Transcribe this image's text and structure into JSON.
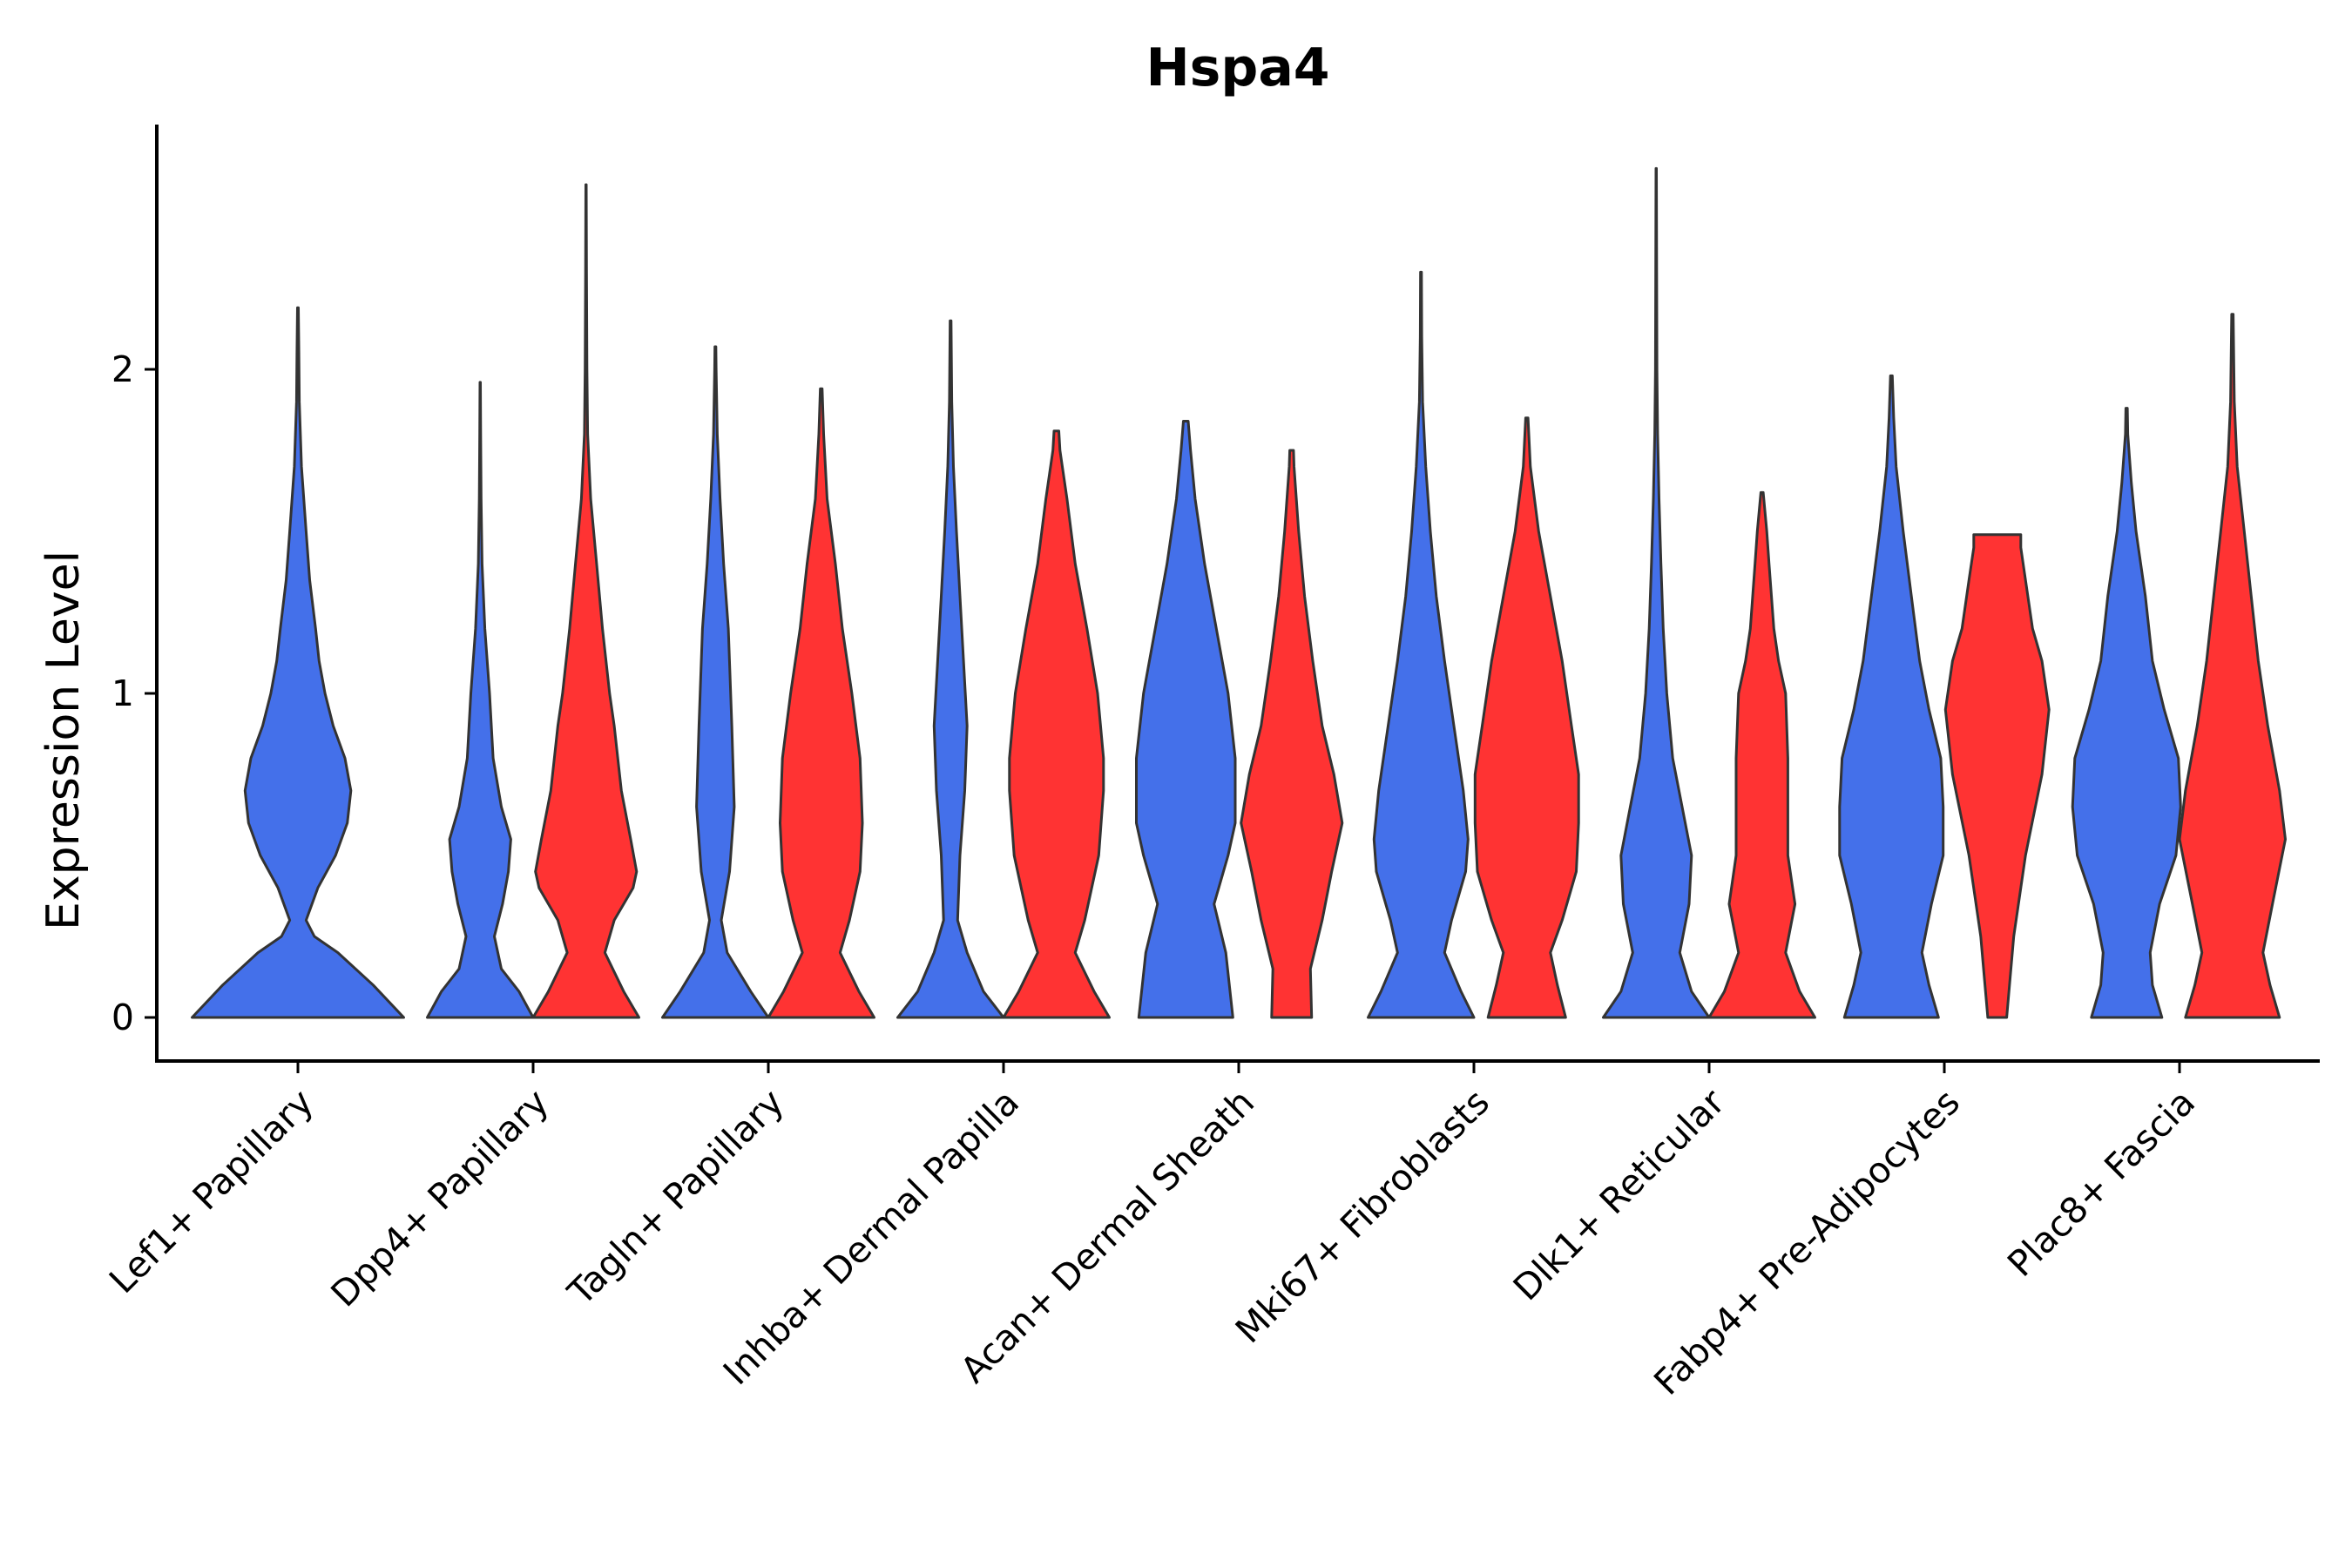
{
  "chart_data": {
    "type": "violin",
    "title": "Hspa4",
    "xlabel": "",
    "ylabel": "Expression Level",
    "ylim": [
      -0.13,
      2.78
    ],
    "yticks": [
      0,
      1,
      2
    ],
    "grid": false,
    "legend": "none",
    "categories": [
      "Lef1+ Papillary",
      "Dpp4+ Papillary",
      "Tagln+ Papillary",
      "Inhba+ Dermal Papilla",
      "Acan+ Dermal Sheath",
      "Mki67+ Fibroblasts",
      "Dlk1+ Reticular",
      "Fabp4+ Pre-Adipocytes",
      "Plac8+ Fascia"
    ],
    "colors": {
      "group1": "#4470EA",
      "group2": "#FF3333",
      "outline": "#333333"
    },
    "violins": [
      {
        "category_index": 0,
        "group": "group1",
        "offset": 0,
        "profile": [
          [
            0.0,
            0.45
          ],
          [
            0.1,
            0.32
          ],
          [
            0.2,
            0.17
          ],
          [
            0.25,
            0.07
          ],
          [
            0.3,
            0.035
          ],
          [
            0.4,
            0.085
          ],
          [
            0.5,
            0.16
          ],
          [
            0.6,
            0.21
          ],
          [
            0.7,
            0.225
          ],
          [
            0.8,
            0.2
          ],
          [
            0.9,
            0.15
          ],
          [
            1.0,
            0.115
          ],
          [
            1.1,
            0.09
          ],
          [
            1.2,
            0.075
          ],
          [
            1.35,
            0.05
          ],
          [
            1.5,
            0.035
          ],
          [
            1.7,
            0.015
          ],
          [
            1.9,
            0.006
          ],
          [
            2.05,
            0.004
          ],
          [
            2.19,
            0.002
          ]
        ]
      },
      {
        "category_index": 1,
        "group": "group1",
        "offset": -0.225,
        "profile": [
          [
            0.0,
            0.225
          ],
          [
            0.08,
            0.165
          ],
          [
            0.15,
            0.09
          ],
          [
            0.25,
            0.06
          ],
          [
            0.35,
            0.095
          ],
          [
            0.45,
            0.12
          ],
          [
            0.55,
            0.13
          ],
          [
            0.65,
            0.09
          ],
          [
            0.8,
            0.055
          ],
          [
            1.0,
            0.04
          ],
          [
            1.2,
            0.02
          ],
          [
            1.4,
            0.008
          ],
          [
            1.6,
            0.004
          ],
          [
            1.8,
            0.002
          ],
          [
            1.96,
            0.0008
          ]
        ]
      },
      {
        "category_index": 1,
        "group": "group2",
        "offset": 0.225,
        "profile": [
          [
            0.0,
            0.225
          ],
          [
            0.08,
            0.16
          ],
          [
            0.2,
            0.08
          ],
          [
            0.3,
            0.12
          ],
          [
            0.4,
            0.2
          ],
          [
            0.45,
            0.215
          ],
          [
            0.55,
            0.19
          ],
          [
            0.7,
            0.15
          ],
          [
            0.9,
            0.12
          ],
          [
            1.0,
            0.1
          ],
          [
            1.2,
            0.07
          ],
          [
            1.4,
            0.045
          ],
          [
            1.6,
            0.02
          ],
          [
            1.8,
            0.007
          ],
          [
            2.0,
            0.004
          ],
          [
            2.3,
            0.002
          ],
          [
            2.57,
            0.001
          ]
        ]
      },
      {
        "category_index": 2,
        "group": "group1",
        "offset": -0.225,
        "profile": [
          [
            0.0,
            0.225
          ],
          [
            0.08,
            0.15
          ],
          [
            0.2,
            0.05
          ],
          [
            0.3,
            0.025
          ],
          [
            0.45,
            0.06
          ],
          [
            0.65,
            0.08
          ],
          [
            0.9,
            0.07
          ],
          [
            1.2,
            0.055
          ],
          [
            1.4,
            0.035
          ],
          [
            1.6,
            0.02
          ],
          [
            1.8,
            0.008
          ],
          [
            2.0,
            0.003
          ],
          [
            2.07,
            0.002
          ]
        ]
      },
      {
        "category_index": 2,
        "group": "group2",
        "offset": 0.225,
        "profile": [
          [
            0.0,
            0.225
          ],
          [
            0.08,
            0.16
          ],
          [
            0.2,
            0.08
          ],
          [
            0.3,
            0.12
          ],
          [
            0.45,
            0.165
          ],
          [
            0.6,
            0.175
          ],
          [
            0.8,
            0.165
          ],
          [
            1.0,
            0.13
          ],
          [
            1.2,
            0.09
          ],
          [
            1.4,
            0.06
          ],
          [
            1.6,
            0.025
          ],
          [
            1.8,
            0.01
          ],
          [
            1.94,
            0.004
          ]
        ]
      },
      {
        "category_index": 3,
        "group": "group1",
        "offset": -0.225,
        "profile": [
          [
            0.0,
            0.225
          ],
          [
            0.08,
            0.14
          ],
          [
            0.2,
            0.07
          ],
          [
            0.3,
            0.03
          ],
          [
            0.5,
            0.04
          ],
          [
            0.7,
            0.06
          ],
          [
            0.9,
            0.07
          ],
          [
            1.1,
            0.055
          ],
          [
            1.3,
            0.04
          ],
          [
            1.5,
            0.025
          ],
          [
            1.7,
            0.012
          ],
          [
            1.9,
            0.005
          ],
          [
            2.15,
            0.002
          ]
        ]
      },
      {
        "category_index": 3,
        "group": "group2",
        "offset": 0.225,
        "profile": [
          [
            0.0,
            0.225
          ],
          [
            0.08,
            0.16
          ],
          [
            0.2,
            0.08
          ],
          [
            0.3,
            0.12
          ],
          [
            0.5,
            0.18
          ],
          [
            0.7,
            0.2
          ],
          [
            0.8,
            0.2
          ],
          [
            1.0,
            0.175
          ],
          [
            1.2,
            0.13
          ],
          [
            1.4,
            0.08
          ],
          [
            1.6,
            0.045
          ],
          [
            1.75,
            0.015
          ],
          [
            1.81,
            0.01
          ]
        ]
      },
      {
        "category_index": 4,
        "group": "group1",
        "offset": -0.225,
        "profile": [
          [
            0.0,
            0.2
          ],
          [
            0.2,
            0.17
          ],
          [
            0.35,
            0.12
          ],
          [
            0.5,
            0.18
          ],
          [
            0.6,
            0.21
          ],
          [
            0.8,
            0.21
          ],
          [
            1.0,
            0.18
          ],
          [
            1.2,
            0.13
          ],
          [
            1.4,
            0.08
          ],
          [
            1.6,
            0.04
          ],
          [
            1.75,
            0.02
          ],
          [
            1.84,
            0.01
          ]
        ]
      },
      {
        "category_index": 4,
        "group": "group2",
        "offset": 0.225,
        "profile": [
          [
            0.0,
            0.085
          ],
          [
            0.15,
            0.08
          ],
          [
            0.3,
            0.13
          ],
          [
            0.45,
            0.17
          ],
          [
            0.6,
            0.215
          ],
          [
            0.75,
            0.18
          ],
          [
            0.9,
            0.13
          ],
          [
            1.1,
            0.09
          ],
          [
            1.3,
            0.055
          ],
          [
            1.5,
            0.03
          ],
          [
            1.7,
            0.01
          ],
          [
            1.75,
            0.008
          ]
        ]
      },
      {
        "category_index": 5,
        "group": "group1",
        "offset": -0.225,
        "profile": [
          [
            0.0,
            0.225
          ],
          [
            0.08,
            0.17
          ],
          [
            0.2,
            0.1
          ],
          [
            0.3,
            0.13
          ],
          [
            0.45,
            0.19
          ],
          [
            0.55,
            0.2
          ],
          [
            0.7,
            0.18
          ],
          [
            0.9,
            0.14
          ],
          [
            1.1,
            0.1
          ],
          [
            1.3,
            0.065
          ],
          [
            1.5,
            0.04
          ],
          [
            1.7,
            0.02
          ],
          [
            1.9,
            0.007
          ],
          [
            2.1,
            0.003
          ],
          [
            2.3,
            0.002
          ]
        ]
      },
      {
        "category_index": 5,
        "group": "group2",
        "offset": 0.225,
        "profile": [
          [
            0.0,
            0.165
          ],
          [
            0.1,
            0.13
          ],
          [
            0.2,
            0.1
          ],
          [
            0.3,
            0.15
          ],
          [
            0.45,
            0.21
          ],
          [
            0.6,
            0.22
          ],
          [
            0.75,
            0.22
          ],
          [
            0.9,
            0.19
          ],
          [
            1.1,
            0.15
          ],
          [
            1.3,
            0.1
          ],
          [
            1.5,
            0.05
          ],
          [
            1.7,
            0.015
          ],
          [
            1.85,
            0.005
          ]
        ]
      },
      {
        "category_index": 6,
        "group": "group1",
        "offset": -0.225,
        "profile": [
          [
            0.0,
            0.225
          ],
          [
            0.08,
            0.15
          ],
          [
            0.2,
            0.1
          ],
          [
            0.35,
            0.14
          ],
          [
            0.5,
            0.15
          ],
          [
            0.65,
            0.11
          ],
          [
            0.8,
            0.07
          ],
          [
            1.0,
            0.045
          ],
          [
            1.2,
            0.03
          ],
          [
            1.4,
            0.02
          ],
          [
            1.6,
            0.012
          ],
          [
            1.8,
            0.006
          ],
          [
            2.0,
            0.003
          ],
          [
            2.3,
            0.002
          ],
          [
            2.62,
            0.001
          ]
        ]
      },
      {
        "category_index": 6,
        "group": "group2",
        "offset": 0.225,
        "profile": [
          [
            0.0,
            0.225
          ],
          [
            0.08,
            0.16
          ],
          [
            0.2,
            0.1
          ],
          [
            0.35,
            0.14
          ],
          [
            0.5,
            0.11
          ],
          [
            0.65,
            0.11
          ],
          [
            0.8,
            0.11
          ],
          [
            1.0,
            0.1
          ],
          [
            1.1,
            0.07
          ],
          [
            1.2,
            0.05
          ],
          [
            1.4,
            0.03
          ],
          [
            1.5,
            0.02
          ],
          [
            1.62,
            0.005
          ]
        ]
      },
      {
        "category_index": 7,
        "group": "group1",
        "offset": -0.225,
        "profile": [
          [
            0.0,
            0.2
          ],
          [
            0.1,
            0.16
          ],
          [
            0.2,
            0.13
          ],
          [
            0.35,
            0.17
          ],
          [
            0.5,
            0.22
          ],
          [
            0.65,
            0.22
          ],
          [
            0.8,
            0.21
          ],
          [
            0.95,
            0.16
          ],
          [
            1.1,
            0.12
          ],
          [
            1.3,
            0.085
          ],
          [
            1.5,
            0.05
          ],
          [
            1.7,
            0.02
          ],
          [
            1.85,
            0.01
          ],
          [
            1.98,
            0.004
          ]
        ]
      },
      {
        "category_index": 7,
        "group": "group2",
        "offset": 0.225,
        "profile": [
          [
            0.0,
            0.04
          ],
          [
            0.25,
            0.07
          ],
          [
            0.5,
            0.12
          ],
          [
            0.75,
            0.19
          ],
          [
            0.95,
            0.22
          ],
          [
            1.1,
            0.19
          ],
          [
            1.2,
            0.15
          ],
          [
            1.35,
            0.12
          ],
          [
            1.45,
            0.1
          ],
          [
            1.49,
            0.1
          ]
        ]
      },
      {
        "category_index": 8,
        "group": "group1",
        "offset": -0.225,
        "profile": [
          [
            0.0,
            0.15
          ],
          [
            0.1,
            0.11
          ],
          [
            0.2,
            0.1
          ],
          [
            0.35,
            0.14
          ],
          [
            0.5,
            0.21
          ],
          [
            0.65,
            0.23
          ],
          [
            0.8,
            0.22
          ],
          [
            0.95,
            0.16
          ],
          [
            1.1,
            0.11
          ],
          [
            1.3,
            0.08
          ],
          [
            1.5,
            0.04
          ],
          [
            1.65,
            0.02
          ],
          [
            1.8,
            0.005
          ],
          [
            1.88,
            0.003
          ]
        ]
      },
      {
        "category_index": 8,
        "group": "group2",
        "offset": 0.225,
        "profile": [
          [
            0.0,
            0.2
          ],
          [
            0.1,
            0.16
          ],
          [
            0.2,
            0.13
          ],
          [
            0.35,
            0.17
          ],
          [
            0.55,
            0.225
          ],
          [
            0.7,
            0.2
          ],
          [
            0.9,
            0.15
          ],
          [
            1.1,
            0.11
          ],
          [
            1.3,
            0.08
          ],
          [
            1.5,
            0.05
          ],
          [
            1.7,
            0.02
          ],
          [
            1.9,
            0.008
          ],
          [
            2.17,
            0.003
          ]
        ]
      }
    ]
  }
}
